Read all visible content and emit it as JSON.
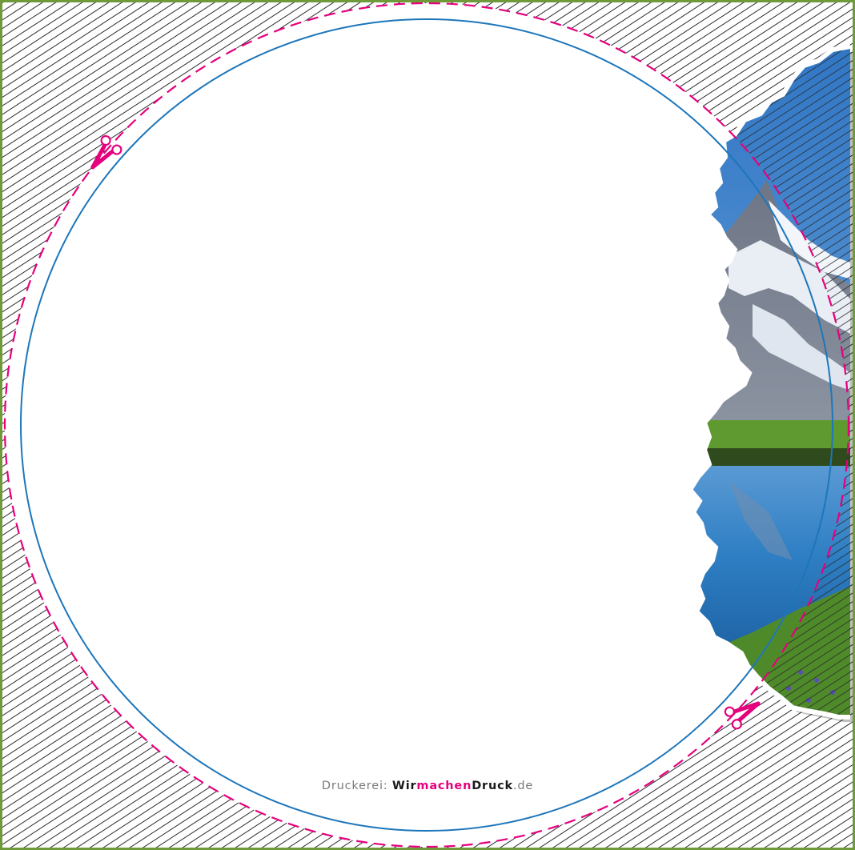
{
  "template": {
    "colors": {
      "trim_border": "#6f9a3a",
      "cut_line": "#e5007d",
      "safe_line": "#1d76bb",
      "hatch": "#2b2b2b",
      "sky": "#4a8fd0",
      "water": "#2f7fc4",
      "grass": "#5f9a30"
    },
    "icons": [
      "scissors-icon",
      "scissors-icon"
    ]
  },
  "footer": {
    "prefix": "Druckerei:",
    "brand_part1": "Wir",
    "brand_part2": "machen",
    "brand_part3": "Druck",
    "domain": ".de"
  }
}
